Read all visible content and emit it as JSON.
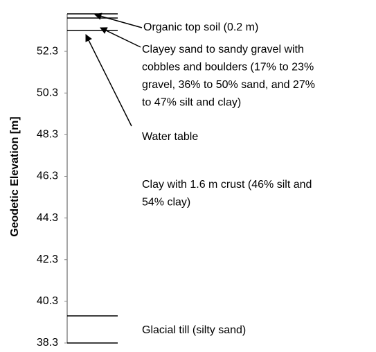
{
  "chart_data": {
    "type": "soil-profile",
    "y_label": "Geodetic Elevation [m]",
    "ylim": [
      38.3,
      54.1
    ],
    "yticks": [
      38.3,
      40.3,
      42.3,
      44.3,
      46.3,
      48.3,
      50.3,
      52.3
    ],
    "boundaries": [
      54.1,
      53.9,
      53.3,
      39.6,
      38.3
    ],
    "water_table": 53.1,
    "water_table_label": "Water table",
    "layers": [
      [
        "Organic top soil (0.2 m)"
      ],
      [
        "Clayey sand to sandy gravel with",
        "cobbles and boulders (17% to 23%",
        "gravel, 36% to 50% sand, and 27%",
        "to 47% silt and clay)"
      ],
      [
        "Clay with 1.6 m crust (46% silt and",
        "54% clay)"
      ],
      [
        "Glacial till (silty sand)"
      ]
    ]
  }
}
